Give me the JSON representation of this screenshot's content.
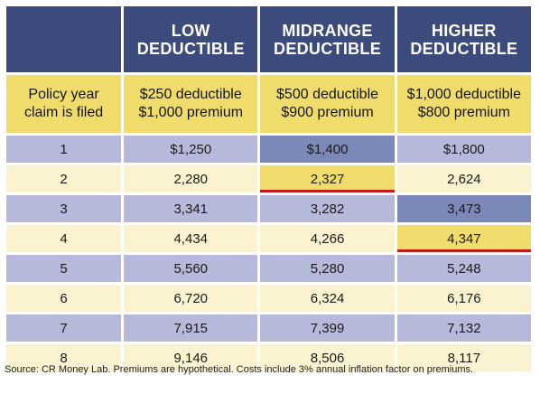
{
  "columns": [
    {
      "line1": "LOW",
      "line2": "DEDUCTIBLE"
    },
    {
      "line1": "MIDRANGE",
      "line2": "DEDUCTIBLE"
    },
    {
      "line1": "HIGHER",
      "line2": "DEDUCTIBLE"
    }
  ],
  "subheader": {
    "label_line1": "Policy year",
    "label_line2": "claim is filed",
    "plans": [
      {
        "deductible": "$250 deductible",
        "premium": "$1,000 premium"
      },
      {
        "deductible": "$500 deductible",
        "premium": "$900 premium"
      },
      {
        "deductible": "$1,000 deductible",
        "premium": "$800 premium"
      }
    ]
  },
  "rows": [
    {
      "year": "1",
      "values": [
        "$1,250",
        "$1,400",
        "$1,800"
      ]
    },
    {
      "year": "2",
      "values": [
        "2,280",
        "2,327",
        "2,624"
      ]
    },
    {
      "year": "3",
      "values": [
        "3,341",
        "3,282",
        "3,473"
      ]
    },
    {
      "year": "4",
      "values": [
        "4,434",
        "4,266",
        "4,347"
      ]
    },
    {
      "year": "5",
      "values": [
        "5,560",
        "5,280",
        "5,248"
      ]
    },
    {
      "year": "6",
      "values": [
        "6,720",
        "6,324",
        "6,176"
      ]
    },
    {
      "year": "7",
      "values": [
        "7,915",
        "7,399",
        "7,132"
      ]
    },
    {
      "year": "8",
      "values": [
        "9,146",
        "8,506",
        "8,117"
      ]
    }
  ],
  "highlights": {
    "breakeven_cells": [
      "midrange year 2",
      "higher year 4"
    ],
    "breakeven_fill": "#f0dc6a",
    "underline_color": "#c21a1a",
    "darker_cells": [
      "midrange year 1",
      "higher year 3"
    ]
  },
  "colors": {
    "header_navy": "#3d4a7c",
    "subheader_yellow": "#f0dc6a",
    "row_lavender": "#b6b9d9",
    "row_cream": "#fbf3cf",
    "row_slate": "#7c88b8"
  },
  "source_note": "Source: CR Money Lab. Premiums are hypothetical. Costs include 3% annual inflation factor on premiums."
}
